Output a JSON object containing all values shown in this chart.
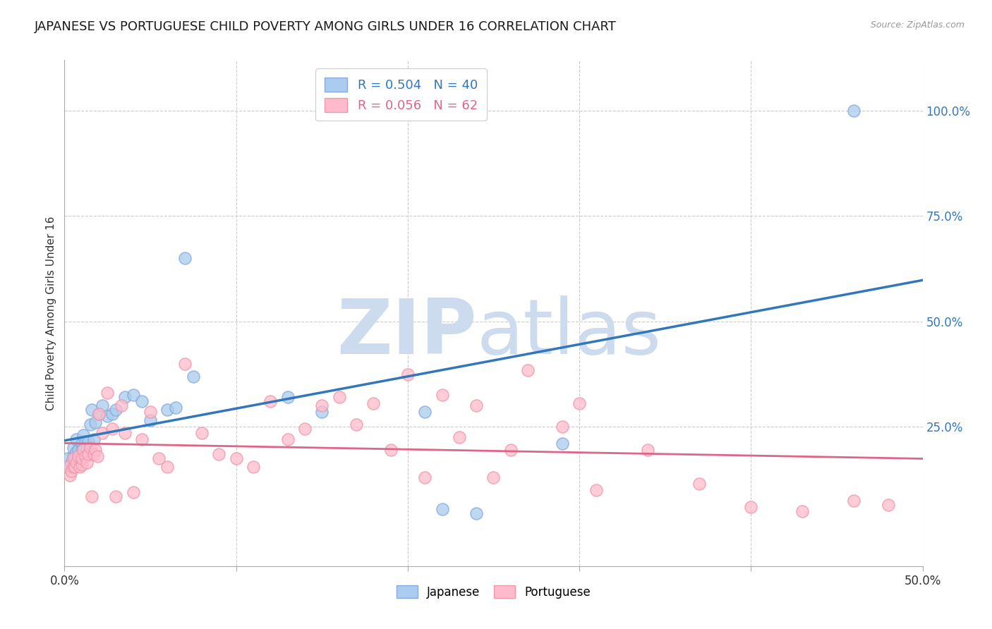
{
  "title": "JAPANESE VS PORTUGUESE CHILD POVERTY AMONG GIRLS UNDER 16 CORRELATION CHART",
  "source": "Source: ZipAtlas.com",
  "ylabel": "Child Poverty Among Girls Under 16",
  "xlim": [
    0.0,
    0.5
  ],
  "ylim": [
    -0.08,
    1.12
  ],
  "xticks": [
    0.0,
    0.1,
    0.2,
    0.3,
    0.4,
    0.5
  ],
  "xticklabels": [
    "0.0%",
    "",
    "",
    "",
    "",
    "50.0%"
  ],
  "yticks_right": [
    1.0,
    0.75,
    0.5,
    0.25
  ],
  "yticklabels_right": [
    "100.0%",
    "75.0%",
    "50.0%",
    "25.0%"
  ],
  "grid_color": "#cccccc",
  "background_color": "#ffffff",
  "watermark_color": "#ccdcee",
  "japanese_face_color": "#aaccee",
  "japanese_edge_color": "#88aadd",
  "portuguese_face_color": "#ffbbcc",
  "portuguese_edge_color": "#ee99aa",
  "japanese_R": 0.504,
  "japanese_N": 40,
  "portuguese_R": 0.056,
  "portuguese_N": 62,
  "japanese_line_color": "#3377bb",
  "portuguese_line_color": "#dd6688",
  "title_fontsize": 13,
  "label_fontsize": 11,
  "tick_fontsize": 12,
  "legend_fontsize": 13,
  "japanese_x": [
    0.002,
    0.003,
    0.004,
    0.005,
    0.005,
    0.006,
    0.007,
    0.007,
    0.008,
    0.009,
    0.01,
    0.01,
    0.011,
    0.012,
    0.013,
    0.014,
    0.015,
    0.016,
    0.017,
    0.018,
    0.02,
    0.022,
    0.025,
    0.028,
    0.03,
    0.035,
    0.04,
    0.045,
    0.05,
    0.06,
    0.065,
    0.07,
    0.075,
    0.13,
    0.15,
    0.21,
    0.22,
    0.24,
    0.29,
    0.46
  ],
  "japanese_y": [
    0.175,
    0.155,
    0.165,
    0.18,
    0.2,
    0.175,
    0.19,
    0.22,
    0.195,
    0.175,
    0.21,
    0.195,
    0.23,
    0.215,
    0.195,
    0.215,
    0.255,
    0.29,
    0.22,
    0.26,
    0.28,
    0.3,
    0.275,
    0.28,
    0.29,
    0.32,
    0.325,
    0.31,
    0.265,
    0.29,
    0.295,
    0.65,
    0.37,
    0.32,
    0.285,
    0.285,
    0.055,
    0.045,
    0.21,
    1.0
  ],
  "portuguese_x": [
    0.002,
    0.003,
    0.004,
    0.005,
    0.005,
    0.006,
    0.007,
    0.008,
    0.009,
    0.01,
    0.01,
    0.011,
    0.012,
    0.013,
    0.014,
    0.015,
    0.016,
    0.017,
    0.018,
    0.019,
    0.02,
    0.022,
    0.025,
    0.028,
    0.03,
    0.033,
    0.035,
    0.04,
    0.045,
    0.05,
    0.055,
    0.06,
    0.07,
    0.08,
    0.09,
    0.1,
    0.11,
    0.12,
    0.13,
    0.14,
    0.15,
    0.16,
    0.17,
    0.18,
    0.19,
    0.2,
    0.21,
    0.22,
    0.23,
    0.24,
    0.25,
    0.26,
    0.27,
    0.29,
    0.3,
    0.31,
    0.34,
    0.37,
    0.4,
    0.43,
    0.46,
    0.48
  ],
  "portuguese_y": [
    0.155,
    0.135,
    0.145,
    0.155,
    0.175,
    0.155,
    0.165,
    0.18,
    0.155,
    0.16,
    0.175,
    0.195,
    0.18,
    0.165,
    0.185,
    0.2,
    0.085,
    0.185,
    0.195,
    0.18,
    0.28,
    0.235,
    0.33,
    0.245,
    0.085,
    0.3,
    0.235,
    0.095,
    0.22,
    0.285,
    0.175,
    0.155,
    0.4,
    0.235,
    0.185,
    0.175,
    0.155,
    0.31,
    0.22,
    0.245,
    0.3,
    0.32,
    0.255,
    0.305,
    0.195,
    0.375,
    0.13,
    0.325,
    0.225,
    0.3,
    0.13,
    0.195,
    0.385,
    0.25,
    0.305,
    0.1,
    0.195,
    0.115,
    0.06,
    0.05,
    0.075,
    0.065
  ]
}
